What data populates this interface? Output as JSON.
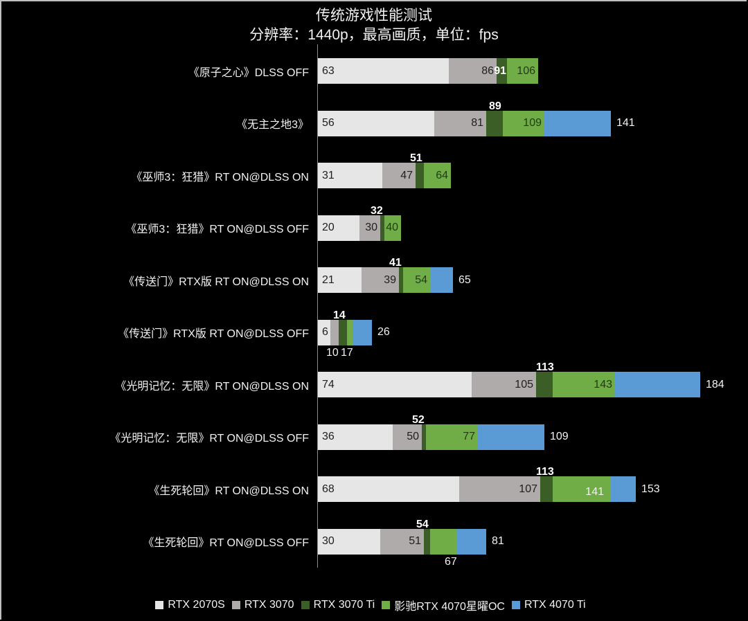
{
  "chart_data": {
    "type": "bar",
    "orientation": "horizontal",
    "layout": "overlapping",
    "title": "传统游戏性能测试",
    "subtitle": "分辨率：1440p，最高画质，单位：fps",
    "xlabel": "",
    "ylabel": "",
    "unit": "fps",
    "grid": false,
    "legend_position": "bottom",
    "categories": [
      "《原子之心》DLSS OFF",
      "《无主之地3》",
      "《巫师3：狂猎》RT ON@DLSS ON",
      "《巫师3：狂猎》RT ON@DLSS OFF",
      "《传送门》RTX版 RT ON@DLSS ON",
      "《传送门》RTX版 RT ON@DLSS OFF",
      "《光明记忆：无限》RT ON@DLSS ON",
      "《光明记忆：无限》RT ON@DLSS OFF",
      "《生死轮回》RT ON@DLSS ON",
      "《生死轮回》RT ON@DLSS OFF"
    ],
    "series": [
      {
        "name": "RTX 2070S",
        "color": "#e6e6e6",
        "values": [
          63,
          56,
          31,
          20,
          21,
          6,
          74,
          36,
          68,
          30
        ]
      },
      {
        "name": "RTX 3070",
        "color": "#afabab",
        "values": [
          86,
          81,
          47,
          30,
          39,
          10,
          105,
          50,
          107,
          51
        ]
      },
      {
        "name": "RTX 3070 Ti",
        "color": "#3b5e27",
        "values": [
          91,
          89,
          51,
          32,
          41,
          14,
          113,
          52,
          113,
          54
        ]
      },
      {
        "name": "影驰RTX 4070星曜OC",
        "color": "#70ad47",
        "values": [
          106,
          109,
          64,
          40,
          54,
          17,
          143,
          77,
          141,
          67
        ]
      },
      {
        "name": "RTX 4070 Ti",
        "color": "#5b9bd5",
        "values": [
          null,
          141,
          null,
          null,
          65,
          26,
          184,
          109,
          153,
          81
        ]
      }
    ]
  },
  "legend": [
    {
      "label": "RTX 2070S",
      "color": "#e6e6e6"
    },
    {
      "label": "RTX 3070",
      "color": "#afabab"
    },
    {
      "label": "RTX 3070 Ti",
      "color": "#3b5e27"
    },
    {
      "label": "影驰RTX 4070星曜OC",
      "color": "#70ad47"
    },
    {
      "label": "RTX 4070 Ti",
      "color": "#5b9bd5"
    }
  ]
}
